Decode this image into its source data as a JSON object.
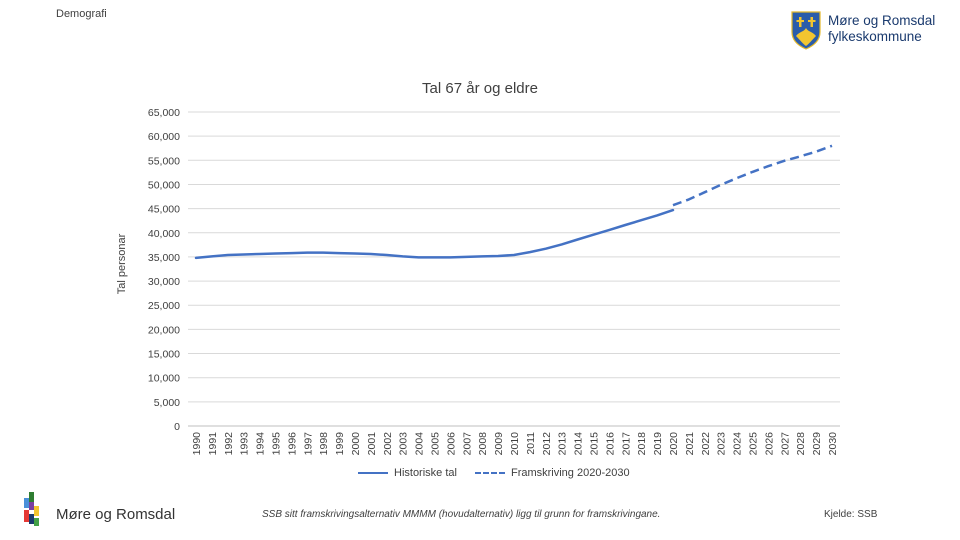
{
  "header": {
    "section": "Demografi",
    "org_name_line1": "Møre og Romsdal",
    "org_name_line2": "fylkeskommune"
  },
  "chart_data": {
    "type": "line",
    "title": "Tal 67 år og eldre",
    "ylabel": "Tal personar",
    "xlabel": "",
    "ylim": [
      0,
      65000
    ],
    "yticks": [
      0,
      5000,
      10000,
      15000,
      20000,
      25000,
      30000,
      35000,
      40000,
      45000,
      50000,
      55000,
      60000,
      65000
    ],
    "ytick_labels": [
      "0",
      "5,000",
      "10,000",
      "15,000",
      "20,000",
      "25,000",
      "30,000",
      "35,000",
      "40,000",
      "45,000",
      "50,000",
      "55,000",
      "60,000",
      "65,000"
    ],
    "grid": true,
    "legend_position": "bottom",
    "categories": [
      "1990",
      "1991",
      "1992",
      "1993",
      "1994",
      "1995",
      "1996",
      "1997",
      "1998",
      "1999",
      "2000",
      "2001",
      "2002",
      "2003",
      "2004",
      "2005",
      "2006",
      "2007",
      "2008",
      "2009",
      "2010",
      "2011",
      "2012",
      "2013",
      "2014",
      "2015",
      "2016",
      "2017",
      "2018",
      "2019",
      "2020",
      "2021",
      "2022",
      "2023",
      "2024",
      "2025",
      "2026",
      "2027",
      "2028",
      "2029",
      "2030"
    ],
    "series": [
      {
        "name": "Historiske tal",
        "style": "solid",
        "color": "#4472c4",
        "values": [
          34800,
          35100,
          35400,
          35500,
          35600,
          35700,
          35800,
          35900,
          35900,
          35800,
          35700,
          35600,
          35400,
          35100,
          34900,
          34900,
          34900,
          35000,
          35100,
          35200,
          35400,
          36000,
          36700,
          37600,
          38600,
          39600,
          40600,
          41600,
          42600,
          43600,
          44700,
          null,
          null,
          null,
          null,
          null,
          null,
          null,
          null,
          null,
          null
        ]
      },
      {
        "name": "Framskriving 2020-2030",
        "style": "dashed",
        "color": "#4472c4",
        "values": [
          null,
          null,
          null,
          null,
          null,
          null,
          null,
          null,
          null,
          null,
          null,
          null,
          null,
          null,
          null,
          null,
          null,
          null,
          null,
          null,
          null,
          null,
          null,
          null,
          null,
          null,
          null,
          null,
          null,
          null,
          45700,
          46900,
          48400,
          49900,
          51300,
          52600,
          53800,
          54900,
          55800,
          56800,
          58000
        ]
      }
    ]
  },
  "footer": {
    "org_name": "Møre og Romsdal",
    "note": "SSB sitt framskrivingsalternativ MMMM (hovudalternativ) ligg til grunn for framskrivingane.",
    "source": "Kjelde: SSB"
  }
}
